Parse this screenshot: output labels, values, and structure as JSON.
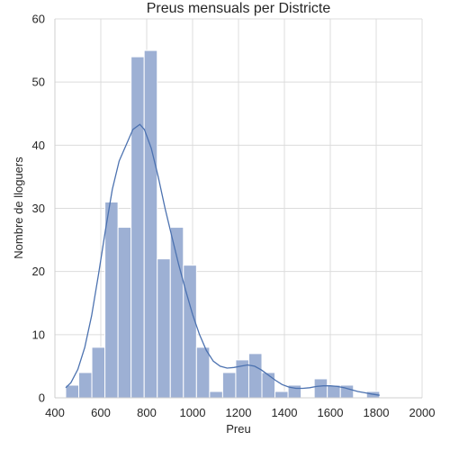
{
  "chart_data": {
    "type": "bar",
    "title": "Preus mensuals per Districte",
    "xlabel": "Preu",
    "ylabel": "Nombre de lloguers",
    "xlim": [
      400,
      2000
    ],
    "ylim": [
      0,
      60
    ],
    "xticks": [
      400,
      600,
      800,
      1000,
      1200,
      1400,
      1600,
      1800,
      2000
    ],
    "yticks": [
      0,
      10,
      20,
      30,
      40,
      50,
      60
    ],
    "grid": true,
    "bar_color": "#9db0d4",
    "line_color": "#4c72b0",
    "bins": [
      {
        "x0": 447,
        "x1": 504,
        "count": 2
      },
      {
        "x0": 504,
        "x1": 561,
        "count": 4
      },
      {
        "x0": 561,
        "x1": 618,
        "count": 8
      },
      {
        "x0": 618,
        "x1": 675,
        "count": 31
      },
      {
        "x0": 675,
        "x1": 732,
        "count": 27
      },
      {
        "x0": 732,
        "x1": 789,
        "count": 54
      },
      {
        "x0": 789,
        "x1": 846,
        "count": 55
      },
      {
        "x0": 846,
        "x1": 903,
        "count": 22
      },
      {
        "x0": 903,
        "x1": 960,
        "count": 27
      },
      {
        "x0": 960,
        "x1": 1017,
        "count": 21
      },
      {
        "x0": 1017,
        "x1": 1074,
        "count": 8
      },
      {
        "x0": 1074,
        "x1": 1131,
        "count": 1
      },
      {
        "x0": 1131,
        "x1": 1188,
        "count": 4
      },
      {
        "x0": 1188,
        "x1": 1245,
        "count": 6
      },
      {
        "x0": 1245,
        "x1": 1302,
        "count": 7
      },
      {
        "x0": 1302,
        "x1": 1359,
        "count": 4
      },
      {
        "x0": 1359,
        "x1": 1416,
        "count": 1
      },
      {
        "x0": 1416,
        "x1": 1473,
        "count": 2
      },
      {
        "x0": 1530,
        "x1": 1587,
        "count": 3
      },
      {
        "x0": 1587,
        "x1": 1644,
        "count": 2
      },
      {
        "x0": 1644,
        "x1": 1701,
        "count": 2
      },
      {
        "x0": 1758,
        "x1": 1815,
        "count": 1
      }
    ],
    "kde": [
      [
        447,
        1.6
      ],
      [
        470,
        2.4
      ],
      [
        500,
        4.5
      ],
      [
        530,
        8
      ],
      [
        560,
        13
      ],
      [
        590,
        19.5
      ],
      [
        620,
        26.5
      ],
      [
        650,
        33
      ],
      [
        680,
        37.5
      ],
      [
        710,
        40
      ],
      [
        740,
        42.5
      ],
      [
        770,
        43.3
      ],
      [
        790,
        42.5
      ],
      [
        820,
        39.5
      ],
      [
        850,
        35
      ],
      [
        880,
        30
      ],
      [
        910,
        25.5
      ],
      [
        940,
        21
      ],
      [
        970,
        17
      ],
      [
        1000,
        13.2
      ],
      [
        1030,
        10
      ],
      [
        1060,
        7.5
      ],
      [
        1090,
        5.8
      ],
      [
        1120,
        5
      ],
      [
        1150,
        4.7
      ],
      [
        1180,
        4.8
      ],
      [
        1210,
        5
      ],
      [
        1240,
        5.2
      ],
      [
        1270,
        5
      ],
      [
        1300,
        4.4
      ],
      [
        1330,
        3.6
      ],
      [
        1360,
        2.8
      ],
      [
        1390,
        2.1
      ],
      [
        1420,
        1.7
      ],
      [
        1450,
        1.5
      ],
      [
        1480,
        1.5
      ],
      [
        1510,
        1.6
      ],
      [
        1540,
        1.8
      ],
      [
        1570,
        1.9
      ],
      [
        1600,
        1.9
      ],
      [
        1630,
        1.8
      ],
      [
        1660,
        1.6
      ],
      [
        1690,
        1.3
      ],
      [
        1720,
        1.0
      ],
      [
        1750,
        0.8
      ],
      [
        1780,
        0.6
      ],
      [
        1815,
        0.4
      ]
    ]
  }
}
